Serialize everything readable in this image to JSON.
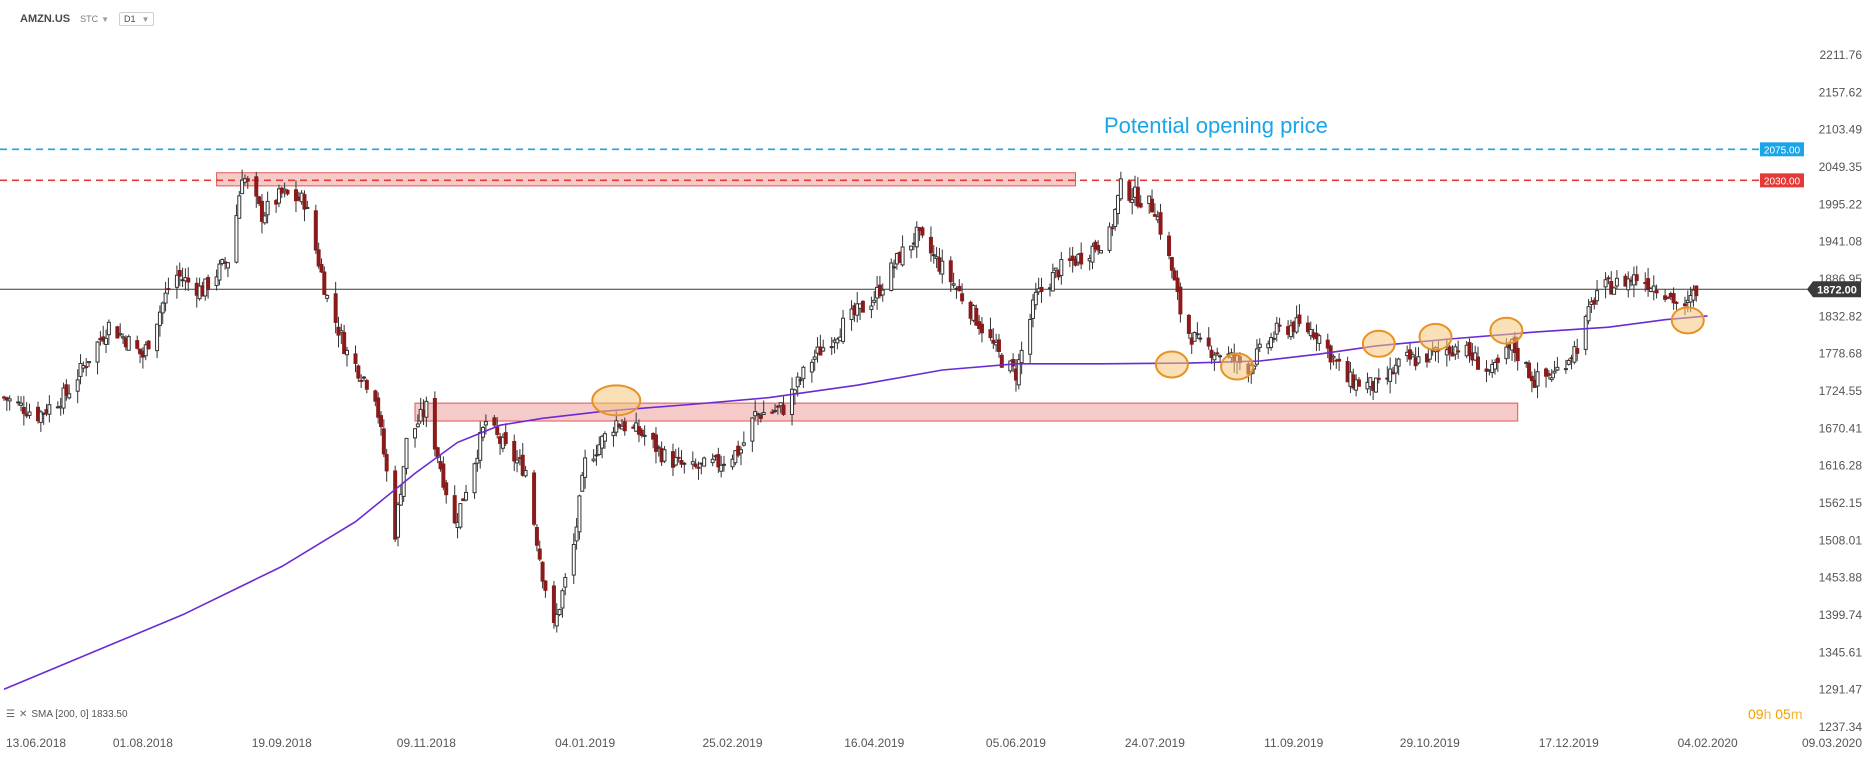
{
  "header": {
    "symbol": "AMZN.US",
    "type_label": "STC",
    "timeframe": "D1"
  },
  "indicator_label": "SMA [200, 0] 1833.50",
  "timer": {
    "hours": "09",
    "hours_unit": "h",
    "minutes": "05",
    "minutes_unit": "m"
  },
  "colors": {
    "bull": "#333333",
    "bear": "#8b1a1a",
    "sma": "#6a2bd3",
    "zone_fill": "#f4b8b8",
    "zone_border": "#e05656",
    "resistance": "#e53935",
    "opening": "#1aa5e8",
    "current": "#3a3a3a",
    "circle_fill": "#f6c77a",
    "circle_stroke": "#e89124",
    "annotation_text": "#1aa5e8"
  },
  "chart_data": {
    "type": "candlestick",
    "title": "",
    "annotation_text": "Potential opening price",
    "y_ticks": [
      2211.76,
      2157.62,
      2103.49,
      2049.35,
      1995.22,
      1941.08,
      1886.95,
      1832.82,
      1778.68,
      1724.55,
      1670.41,
      1616.28,
      1562.15,
      1508.01,
      1453.88,
      1399.74,
      1345.61,
      1291.47,
      1237.34
    ],
    "y_tick_labels": [
      "2211.76",
      "2157.62",
      "2103.49",
      "2049.35",
      "1995.22",
      "1941.08",
      "1886.95",
      "1832.82",
      "1778.68",
      "1724.55",
      "1670.41",
      "1616.28",
      "1562.15",
      "1508.01",
      "1453.88",
      "1399.74",
      "1345.61",
      "1291.47",
      "1237.34"
    ],
    "ylim": [
      1237.34,
      2211.76
    ],
    "x_dates": [
      "2018-06-13",
      "2018-08-01",
      "2018-09-19",
      "2018-11-09",
      "2019-01-04",
      "2019-02-25",
      "2019-04-16",
      "2019-06-05",
      "2019-07-24",
      "2019-09-11",
      "2019-10-29",
      "2019-12-17",
      "2020-02-04",
      "2020-03-09"
    ],
    "x_tick_labels": [
      "13.06.2018",
      "01.08.2018",
      "19.09.2018",
      "09.11.2018",
      "04.01.2019",
      "25.02.2019",
      "16.04.2019",
      "05.06.2019",
      "24.07.2019",
      "11.09.2019",
      "29.10.2019",
      "17.12.2019",
      "04.02.2020",
      "09.03.2020"
    ],
    "xlim": [
      "2018-06-13",
      "2020-03-09"
    ],
    "horizontal_lines": [
      {
        "value": 2075.0,
        "label": "2075.00",
        "style": "dashed",
        "color_key": "opening"
      },
      {
        "value": 2030.0,
        "label": "2030.00",
        "style": "dashed",
        "color_key": "resistance"
      },
      {
        "value": 1872.0,
        "label": "1872.00",
        "style": "solid",
        "color_key": "current"
      }
    ],
    "zones": [
      {
        "from": "2018-08-27",
        "to": "2019-06-26",
        "low": 2022,
        "high": 2041
      },
      {
        "from": "2018-11-05",
        "to": "2019-11-29",
        "low": 1681,
        "high": 1707
      }
    ],
    "circles": [
      {
        "date": "2019-01-15",
        "price": 1711
      },
      {
        "date": "2019-07-30",
        "price": 1763
      },
      {
        "date": "2019-08-22",
        "price": 1760
      },
      {
        "date": "2019-10-11",
        "price": 1793
      },
      {
        "date": "2019-10-31",
        "price": 1803
      },
      {
        "date": "2019-11-25",
        "price": 1812
      },
      {
        "date": "2020-01-28",
        "price": 1827
      }
    ],
    "sma": {
      "name": "SMA [200, 0]",
      "points": [
        [
          "2018-06-13",
          1292
        ],
        [
          "2018-07-15",
          1347
        ],
        [
          "2018-08-15",
          1400
        ],
        [
          "2018-09-19",
          1470
        ],
        [
          "2018-10-15",
          1535
        ],
        [
          "2018-11-05",
          1605
        ],
        [
          "2018-11-20",
          1650
        ],
        [
          "2018-12-05",
          1675
        ],
        [
          "2018-12-20",
          1685
        ],
        [
          "2019-01-10",
          1695
        ],
        [
          "2019-02-10",
          1705
        ],
        [
          "2019-03-10",
          1715
        ],
        [
          "2019-04-10",
          1733
        ],
        [
          "2019-05-10",
          1755
        ],
        [
          "2019-06-05",
          1764
        ],
        [
          "2019-07-05",
          1764
        ],
        [
          "2019-08-05",
          1765
        ],
        [
          "2019-08-30",
          1768
        ],
        [
          "2019-09-20",
          1778
        ],
        [
          "2019-10-10",
          1790
        ],
        [
          "2019-11-05",
          1800
        ],
        [
          "2019-12-05",
          1810
        ],
        [
          "2019-12-31",
          1817
        ],
        [
          "2020-01-20",
          1828
        ],
        [
          "2020-02-04",
          1833.5
        ]
      ]
    },
    "price_path": [
      [
        "2018-06-13",
        1715
      ],
      [
        "2018-06-25",
        1690
      ],
      [
        "2018-07-05",
        1720
      ],
      [
        "2018-07-20",
        1820
      ],
      [
        "2018-07-26",
        1800
      ],
      [
        "2018-08-01",
        1775
      ],
      [
        "2018-08-12",
        1895
      ],
      [
        "2018-08-22",
        1870
      ],
      [
        "2018-09-01",
        1920
      ],
      [
        "2018-09-05",
        2040
      ],
      [
        "2018-09-12",
        1980
      ],
      [
        "2018-09-19",
        2010
      ],
      [
        "2018-09-27",
        2000
      ],
      [
        "2018-10-05",
        1860
      ],
      [
        "2018-10-12",
        1780
      ],
      [
        "2018-10-22",
        1720
      ],
      [
        "2018-10-29",
        1520
      ],
      [
        "2018-11-02",
        1650
      ],
      [
        "2018-11-09",
        1700
      ],
      [
        "2018-11-19",
        1530
      ],
      [
        "2018-11-30",
        1680
      ],
      [
        "2018-12-07",
        1640
      ],
      [
        "2018-12-14",
        1610
      ],
      [
        "2018-12-20",
        1460
      ],
      [
        "2018-12-24",
        1380
      ],
      [
        "2018-12-31",
        1500
      ],
      [
        "2019-01-04",
        1620
      ],
      [
        "2019-01-15",
        1680
      ],
      [
        "2019-01-25",
        1660
      ],
      [
        "2019-02-01",
        1630
      ],
      [
        "2019-02-10",
        1610
      ],
      [
        "2019-02-20",
        1620
      ],
      [
        "2019-02-28",
        1640
      ],
      [
        "2019-03-05",
        1690
      ],
      [
        "2019-03-15",
        1700
      ],
      [
        "2019-03-25",
        1770
      ],
      [
        "2019-04-05",
        1820
      ],
      [
        "2019-04-16",
        1860
      ],
      [
        "2019-04-25",
        1920
      ],
      [
        "2019-05-01",
        1950
      ],
      [
        "2019-05-05",
        1930
      ],
      [
        "2019-05-14",
        1880
      ],
      [
        "2019-05-22",
        1830
      ],
      [
        "2019-05-31",
        1770
      ],
      [
        "2019-06-05",
        1750
      ],
      [
        "2019-06-12",
        1860
      ],
      [
        "2019-06-20",
        1900
      ],
      [
        "2019-06-28",
        1920
      ],
      [
        "2019-07-08",
        1950
      ],
      [
        "2019-07-12",
        2020
      ],
      [
        "2019-07-16",
        2010
      ],
      [
        "2019-07-24",
        1990
      ],
      [
        "2019-07-30",
        1900
      ],
      [
        "2019-08-03",
        1820
      ],
      [
        "2019-08-09",
        1790
      ],
      [
        "2019-08-16",
        1780
      ],
      [
        "2019-08-26",
        1760
      ],
      [
        "2019-09-05",
        1810
      ],
      [
        "2019-09-11",
        1820
      ],
      [
        "2019-09-19",
        1810
      ],
      [
        "2019-09-30",
        1740
      ],
      [
        "2019-10-11",
        1730
      ],
      [
        "2019-10-20",
        1770
      ],
      [
        "2019-10-25",
        1770
      ],
      [
        "2019-10-31",
        1780
      ],
      [
        "2019-11-08",
        1790
      ],
      [
        "2019-11-20",
        1750
      ],
      [
        "2019-11-27",
        1790
      ],
      [
        "2019-12-05",
        1740
      ],
      [
        "2019-12-12",
        1750
      ],
      [
        "2019-12-20",
        1790
      ],
      [
        "2019-12-27",
        1870
      ],
      [
        "2020-01-03",
        1880
      ],
      [
        "2020-01-10",
        1890
      ],
      [
        "2020-01-20",
        1870
      ],
      [
        "2020-01-27",
        1840
      ],
      [
        "2020-01-31",
        1872
      ]
    ]
  }
}
